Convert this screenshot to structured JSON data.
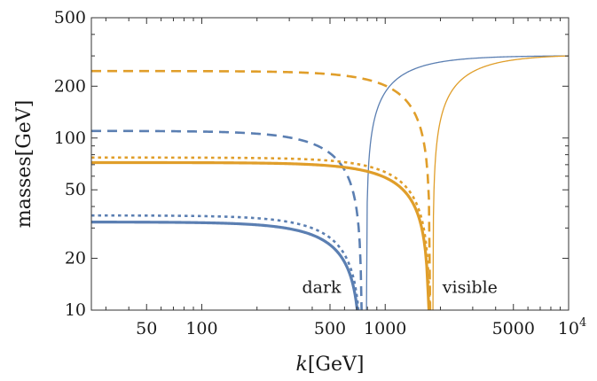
{
  "chart_data": {
    "type": "line",
    "xscale": "log",
    "yscale": "log",
    "xlim": [
      25,
      10000
    ],
    "ylim": [
      10,
      500
    ],
    "xlabel_italic": "k",
    "xlabel_unit": "[GeV]",
    "ylabel": "masses[GeV]",
    "x_ticks": [
      {
        "value": 50,
        "label": "50"
      },
      {
        "value": 100,
        "label": "100"
      },
      {
        "value": 500,
        "label": "500"
      },
      {
        "value": 1000,
        "label": "1000"
      },
      {
        "value": 5000,
        "label": "5000"
      },
      {
        "value": 10000,
        "label": "10",
        "sup": "4"
      }
    ],
    "y_ticks": [
      {
        "value": 10,
        "label": "10"
      },
      {
        "value": 20,
        "label": "20"
      },
      {
        "value": 50,
        "label": "50"
      },
      {
        "value": 100,
        "label": "100"
      },
      {
        "value": 200,
        "label": "200"
      },
      {
        "value": 500,
        "label": "500"
      }
    ],
    "grid": false,
    "colors": {
      "blue": "#5b7fb2",
      "orange": "#e09e2a"
    },
    "series": [
      {
        "id": "blue-solid-thick",
        "color": "blue",
        "style": "solid",
        "width": 3.2,
        "kind": "drop",
        "m0": 32.5,
        "k0": 740
      },
      {
        "id": "blue-dotted",
        "color": "blue",
        "style": "dotted",
        "width": 2.6,
        "kind": "drop",
        "m0": 35.5,
        "k0": 745
      },
      {
        "id": "blue-dashed",
        "color": "blue",
        "style": "dashed",
        "width": 2.6,
        "kind": "drop",
        "m0": 110,
        "k0": 745
      },
      {
        "id": "blue-thin",
        "color": "blue",
        "style": "solid",
        "width": 1.3,
        "kind": "rise",
        "k0": 790,
        "m_end": 300
      },
      {
        "id": "orange-solid-thick",
        "color": "orange",
        "style": "solid",
        "width": 3.2,
        "kind": "drop",
        "m0": 72,
        "k0": 1740
      },
      {
        "id": "orange-dotted",
        "color": "orange",
        "style": "dotted",
        "width": 2.6,
        "kind": "drop",
        "m0": 77,
        "k0": 1760
      },
      {
        "id": "orange-dashed",
        "color": "orange",
        "style": "dashed",
        "width": 2.6,
        "kind": "drop",
        "m0": 245,
        "k0": 1760
      },
      {
        "id": "orange-thin",
        "color": "orange",
        "style": "solid",
        "width": 1.3,
        "kind": "rise",
        "k0": 1820,
        "m_end": 300
      }
    ],
    "annotations": [
      {
        "text": "dark",
        "x": 450,
        "y": 13.5
      },
      {
        "text": "visible",
        "x": 2900,
        "y": 13.5
      }
    ]
  }
}
